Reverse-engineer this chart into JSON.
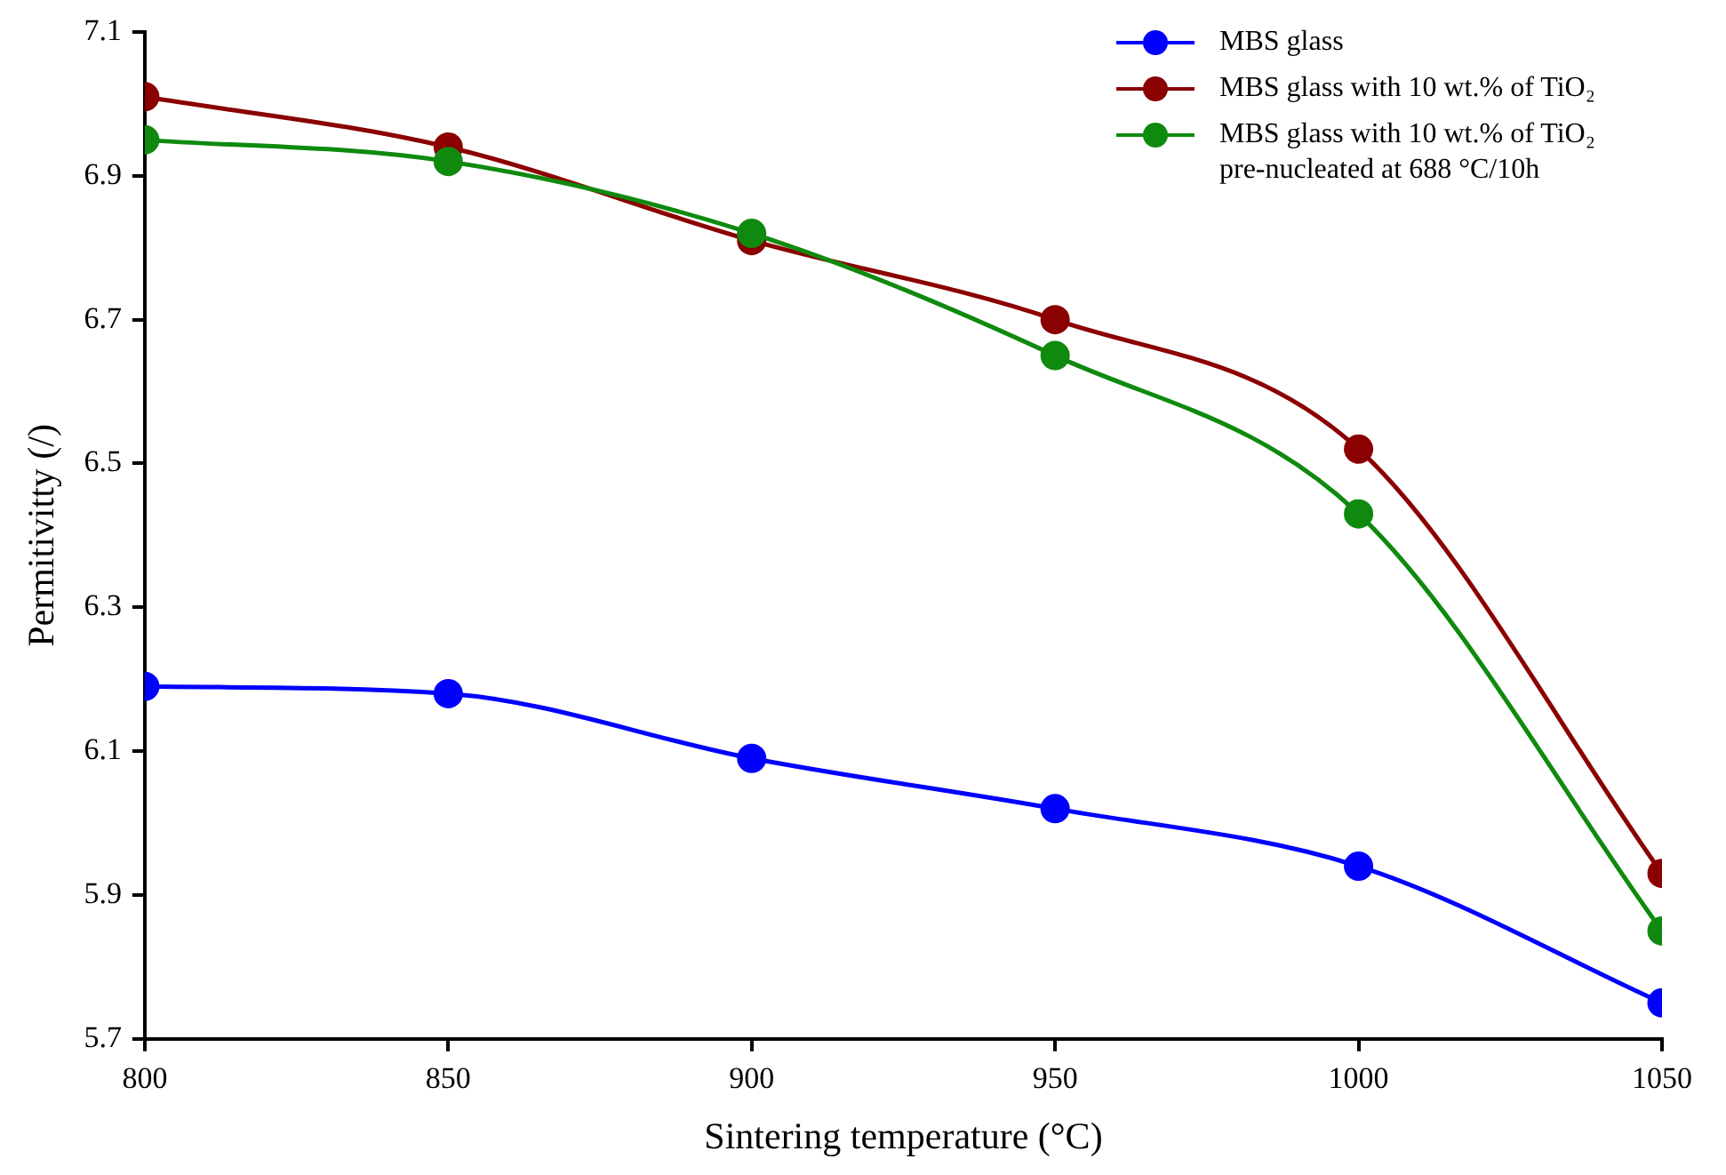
{
  "chart_data": {
    "type": "line",
    "xlabel": "Sintering temperature (°C)",
    "ylabel": "Permitivitty (/)",
    "x": [
      800,
      850,
      900,
      950,
      1000,
      1050
    ],
    "xlim": [
      800,
      1050
    ],
    "xticks": [
      800,
      850,
      900,
      950,
      1000,
      1050
    ],
    "ylim": [
      5.7,
      7.1
    ],
    "yticks": [
      5.7,
      5.9,
      6.1,
      6.3,
      6.5,
      6.7,
      6.9,
      7.1
    ],
    "grid": false,
    "legend": "top right",
    "marker": "circle",
    "line_style": "solid",
    "series": [
      {
        "name": "MBS glass",
        "color": "#0000ff",
        "values": [
          6.19,
          6.18,
          6.09,
          6.02,
          5.94,
          5.75
        ]
      },
      {
        "name": "MBS glass with 10 wt.% of TiO₂",
        "color": "#8b0000",
        "values": [
          7.01,
          6.94,
          6.81,
          6.7,
          6.52,
          5.93
        ]
      },
      {
        "name": "MBS glass with 10 wt.% of TiO₂ pre-nucleated at 688 °C/10h",
        "color": "#0f8a0f",
        "values": [
          6.95,
          6.92,
          6.82,
          6.65,
          6.43,
          5.85
        ]
      }
    ]
  }
}
